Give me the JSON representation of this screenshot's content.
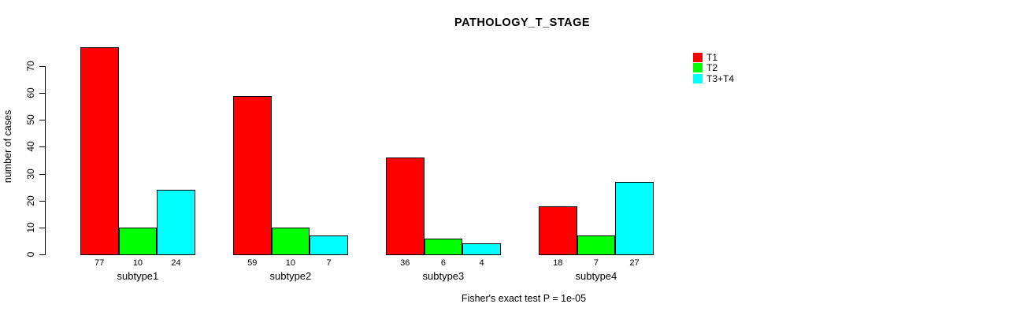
{
  "chart_data": {
    "type": "bar",
    "title": "PATHOLOGY_T_STAGE",
    "xlabel": "",
    "ylabel": "number of cases",
    "categories": [
      "subtype1",
      "subtype2",
      "subtype3",
      "subtype4"
    ],
    "series": [
      {
        "name": "T1",
        "color": "#FF0000",
        "values": [
          77,
          59,
          36,
          18
        ]
      },
      {
        "name": "T2",
        "color": "#00FF00",
        "values": [
          10,
          10,
          6,
          7
        ]
      },
      {
        "name": "T3+T4",
        "color": "#00FFFF",
        "values": [
          24,
          7,
          4,
          27
        ]
      }
    ],
    "bar_value_labels": [
      [
        "77",
        "10",
        "24"
      ],
      [
        "59",
        "10",
        "7"
      ],
      [
        "36",
        "6",
        "4"
      ],
      [
        "18",
        "7",
        "27"
      ]
    ],
    "yticks": [
      0,
      10,
      20,
      30,
      40,
      50,
      60,
      70
    ],
    "ylim": [
      0,
      70
    ],
    "grid": false,
    "legend_position": "top-right",
    "annotation": "Fisher's exact test P = 1e-05"
  }
}
